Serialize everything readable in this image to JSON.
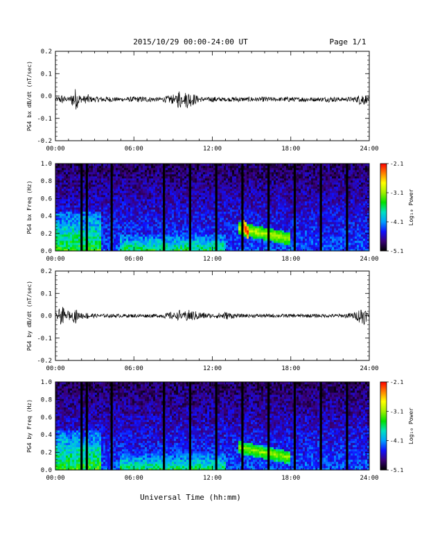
{
  "header": {
    "title": "2015/10/29  00:00-24:00 UT",
    "page": "Page 1/1"
  },
  "footer": {
    "xlabel": "Universal Time (hh:mm)"
  },
  "colorbar": {
    "label": "Log₁₀ Power",
    "ticks": [
      "-2.1",
      "-3.1",
      "-4.1",
      "-5.1"
    ],
    "range": [
      -5.1,
      -2.1
    ],
    "colors": [
      "#000000",
      "#3a0078",
      "#1010ff",
      "#00a0ff",
      "#00e0c0",
      "#00e000",
      "#a0f000",
      "#ffff00",
      "#ff8000",
      "#ff0000"
    ]
  },
  "chart_data": [
    {
      "type": "line",
      "ylabel": "PG4 bx dB/dt (nT/sec)",
      "xlim": [
        0,
        24
      ],
      "ylim": [
        -0.2,
        0.2
      ],
      "xticks": [
        "00:00",
        "06:00",
        "12:00",
        "18:00",
        "24:00"
      ],
      "yticks": [
        "0.2",
        "0.1",
        "0.0",
        "-0.1",
        "-0.2"
      ],
      "series": [
        {
          "x": [
            0,
            0.5,
            1,
            1.5,
            2,
            2.5,
            3,
            4,
            5,
            6,
            7,
            8,
            9,
            9.5,
            10,
            11,
            12,
            13,
            14,
            15,
            16,
            17,
            18,
            19,
            20,
            21,
            22,
            23,
            23.5,
            24
          ],
          "values": [
            -0.01,
            -0.03,
            -0.01,
            -0.06,
            -0.02,
            -0.03,
            -0.01,
            -0.01,
            -0.015,
            -0.01,
            -0.01,
            -0.015,
            -0.03,
            0.03,
            -0.05,
            -0.02,
            -0.01,
            -0.015,
            -0.01,
            -0.02,
            -0.01,
            -0.015,
            -0.01,
            -0.02,
            -0.015,
            -0.01,
            -0.015,
            -0.02,
            -0.04,
            -0.01
          ]
        }
      ],
      "baseline": -0.015
    },
    {
      "type": "heatmap",
      "ylabel": "PG4 bx Freq (Hz)",
      "xlim": [
        0,
        24
      ],
      "ylim": [
        0.0,
        1.0
      ],
      "xticks": [
        "00:00",
        "06:00",
        "12:00",
        "18:00",
        "24:00"
      ],
      "yticks": [
        "1.0",
        "0.8",
        "0.6",
        "0.4",
        "0.2",
        "0.0"
      ],
      "zlim": [
        -5.1,
        -2.1
      ],
      "data_gaps_hours": [
        2.0,
        2.4,
        4.3,
        8.3,
        10.3,
        12.3,
        14.3,
        16.3,
        18.3,
        20.3,
        22.3
      ],
      "features": [
        {
          "t_start": 0.0,
          "t_end": 3.5,
          "f_top": 0.45,
          "power": -3.4
        },
        {
          "t_start": 5.0,
          "t_end": 13.0,
          "f_top": 0.2,
          "power": -3.5
        },
        {
          "t_start": 14.0,
          "t_end": 18.0,
          "f_center": 0.2,
          "power": -3.0
        },
        {
          "t_start": 14.3,
          "t_end": 14.8,
          "f_center": 0.25,
          "power": -2.2
        }
      ]
    },
    {
      "type": "line",
      "ylabel": "PG4 by dB/dt (nT/sec)",
      "xlim": [
        0,
        24
      ],
      "ylim": [
        -0.2,
        0.2
      ],
      "xticks": [
        "00:00",
        "06:00",
        "12:00",
        "18:00",
        "24:00"
      ],
      "yticks": [
        "0.2",
        "0.1",
        "0.0",
        "-0.1",
        "-0.2"
      ],
      "series": [
        {
          "x": [
            0,
            0.5,
            1,
            1.5,
            2,
            2.5,
            3,
            4,
            5,
            6,
            7,
            8,
            9,
            9.5,
            10,
            11,
            12,
            13,
            14,
            15,
            16,
            17,
            18,
            19,
            20,
            21,
            22,
            23,
            23.5,
            24
          ],
          "values": [
            0.0,
            0.04,
            -0.02,
            0.03,
            -0.01,
            0.01,
            0.0,
            0.0,
            0.0,
            0.0,
            0.0,
            0.0,
            0.01,
            -0.02,
            0.02,
            0.01,
            0.0,
            -0.01,
            0.0,
            0.0,
            0.0,
            0.0,
            0.0,
            0.0,
            0.0,
            0.0,
            0.0,
            0.01,
            0.04,
            0.0
          ]
        }
      ],
      "baseline": 0.0
    },
    {
      "type": "heatmap",
      "ylabel": "PG4 by Freq (Hz)",
      "xlim": [
        0,
        24
      ],
      "ylim": [
        0.0,
        1.0
      ],
      "xticks": [
        "00:00",
        "06:00",
        "12:00",
        "18:00",
        "24:00"
      ],
      "yticks": [
        "1.0",
        "0.8",
        "0.6",
        "0.4",
        "0.2",
        "0.0"
      ],
      "zlim": [
        -5.1,
        -2.1
      ],
      "data_gaps_hours": [
        2.0,
        2.4,
        4.3,
        8.3,
        10.3,
        12.3,
        14.3,
        16.3,
        18.3,
        20.3,
        22.3
      ],
      "features": [
        {
          "t_start": 0.0,
          "t_end": 3.5,
          "f_top": 0.45,
          "power": -3.4
        },
        {
          "t_start": 5.0,
          "t_end": 13.0,
          "f_top": 0.2,
          "power": -3.5
        },
        {
          "t_start": 14.0,
          "t_end": 18.0,
          "f_center": 0.2,
          "power": -3.1
        }
      ]
    }
  ]
}
